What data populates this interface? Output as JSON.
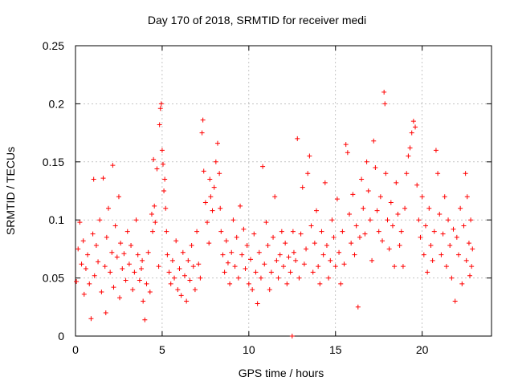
{
  "chart_data": {
    "type": "scatter",
    "title": "Day 170 of 2018, SRMTID for receiver medi",
    "xlabel": "GPS time / hours",
    "ylabel": "SRMTID / TECUs",
    "xlim": [
      0,
      24
    ],
    "ylim": [
      0,
      0.25
    ],
    "xticks": [
      0,
      5,
      10,
      15,
      20
    ],
    "xtick_labels": [
      "0",
      "5",
      "10",
      "15",
      "20"
    ],
    "yticks": [
      0,
      0.05,
      0.1,
      0.15,
      0.2,
      0.25
    ],
    "ytick_labels": [
      "0",
      "0.05",
      "0.1",
      "0.15",
      "0.2",
      "0.25"
    ],
    "grid": true,
    "marker": "plus",
    "color": "#ff0000",
    "series": [
      {
        "name": "SRMTID",
        "points": [
          [
            0.05,
            0.047
          ],
          [
            0.15,
            0.075
          ],
          [
            0.25,
            0.098
          ],
          [
            0.35,
            0.062
          ],
          [
            0.45,
            0.082
          ],
          [
            0.5,
            0.036
          ],
          [
            0.6,
            0.058
          ],
          [
            0.7,
            0.07
          ],
          [
            0.8,
            0.045
          ],
          [
            0.9,
            0.015
          ],
          [
            1.0,
            0.088
          ],
          [
            1.05,
            0.135
          ],
          [
            1.1,
            0.052
          ],
          [
            1.2,
            0.078
          ],
          [
            1.3,
            0.064
          ],
          [
            1.4,
            0.1
          ],
          [
            1.5,
            0.038
          ],
          [
            1.6,
            0.136
          ],
          [
            1.7,
            0.06
          ],
          [
            1.75,
            0.02
          ],
          [
            1.8,
            0.085
          ],
          [
            1.9,
            0.11
          ],
          [
            2.0,
            0.055
          ],
          [
            2.1,
            0.072
          ],
          [
            2.15,
            0.147
          ],
          [
            2.2,
            0.042
          ],
          [
            2.3,
            0.095
          ],
          [
            2.4,
            0.068
          ],
          [
            2.5,
            0.12
          ],
          [
            2.55,
            0.033
          ],
          [
            2.6,
            0.08
          ],
          [
            2.7,
            0.058
          ],
          [
            2.8,
            0.071
          ],
          [
            2.9,
            0.048
          ],
          [
            3.0,
            0.09
          ],
          [
            3.1,
            0.062
          ],
          [
            3.2,
            0.078
          ],
          [
            3.3,
            0.04
          ],
          [
            3.4,
            0.055
          ],
          [
            3.5,
            0.1
          ],
          [
            3.6,
            0.07
          ],
          [
            3.7,
            0.048
          ],
          [
            3.8,
            0.058
          ],
          [
            3.85,
            0.065
          ],
          [
            3.9,
            0.03
          ],
          [
            4.0,
            0.014
          ],
          [
            4.1,
            0.045
          ],
          [
            4.2,
            0.072
          ],
          [
            4.3,
            0.038
          ],
          [
            4.4,
            0.105
          ],
          [
            4.45,
            0.09
          ],
          [
            4.5,
            0.152
          ],
          [
            4.55,
            0.112
          ],
          [
            4.6,
            0.098
          ],
          [
            4.7,
            0.144
          ],
          [
            4.8,
            0.06
          ],
          [
            4.85,
            0.182
          ],
          [
            4.9,
            0.196
          ],
          [
            4.95,
            0.2
          ],
          [
            5.0,
            0.16
          ],
          [
            5.05,
            0.148
          ],
          [
            5.1,
            0.125
          ],
          [
            5.15,
            0.135
          ],
          [
            5.2,
            0.11
          ],
          [
            5.25,
            0.09
          ],
          [
            5.3,
            0.07
          ],
          [
            5.4,
            0.055
          ],
          [
            5.5,
            0.045
          ],
          [
            5.6,
            0.065
          ],
          [
            5.7,
            0.05
          ],
          [
            5.8,
            0.082
          ],
          [
            5.9,
            0.04
          ],
          [
            6.0,
            0.058
          ],
          [
            6.1,
            0.035
          ],
          [
            6.2,
            0.072
          ],
          [
            6.3,
            0.052
          ],
          [
            6.4,
            0.03
          ],
          [
            6.5,
            0.065
          ],
          [
            6.6,
            0.048
          ],
          [
            6.7,
            0.078
          ],
          [
            6.8,
            0.06
          ],
          [
            6.9,
            0.04
          ],
          [
            7.0,
            0.09
          ],
          [
            7.1,
            0.062
          ],
          [
            7.2,
            0.05
          ],
          [
            7.3,
            0.175
          ],
          [
            7.35,
            0.186
          ],
          [
            7.4,
            0.142
          ],
          [
            7.5,
            0.115
          ],
          [
            7.6,
            0.098
          ],
          [
            7.7,
            0.08
          ],
          [
            7.75,
            0.135
          ],
          [
            7.8,
            0.12
          ],
          [
            7.9,
            0.108
          ],
          [
            8.0,
            0.128
          ],
          [
            8.1,
            0.15
          ],
          [
            8.2,
            0.166
          ],
          [
            8.3,
            0.14
          ],
          [
            8.35,
            0.11
          ],
          [
            8.4,
            0.09
          ],
          [
            8.5,
            0.07
          ],
          [
            8.6,
            0.055
          ],
          [
            8.7,
            0.082
          ],
          [
            8.8,
            0.063
          ],
          [
            8.9,
            0.045
          ],
          [
            9.0,
            0.072
          ],
          [
            9.1,
            0.1
          ],
          [
            9.2,
            0.06
          ],
          [
            9.3,
            0.085
          ],
          [
            9.4,
            0.05
          ],
          [
            9.5,
            0.112
          ],
          [
            9.6,
            0.07
          ],
          [
            9.7,
            0.092
          ],
          [
            9.8,
            0.058
          ],
          [
            9.9,
            0.078
          ],
          [
            10.0,
            0.045
          ],
          [
            10.1,
            0.066
          ],
          [
            10.2,
            0.04
          ],
          [
            10.3,
            0.088
          ],
          [
            10.4,
            0.055
          ],
          [
            10.5,
            0.028
          ],
          [
            10.6,
            0.072
          ],
          [
            10.7,
            0.05
          ],
          [
            10.8,
            0.146
          ],
          [
            10.9,
            0.062
          ],
          [
            11.0,
            0.098
          ],
          [
            11.1,
            0.078
          ],
          [
            11.2,
            0.04
          ],
          [
            11.3,
            0.055
          ],
          [
            11.4,
            0.085
          ],
          [
            11.5,
            0.12
          ],
          [
            11.6,
            0.065
          ],
          [
            11.7,
            0.05
          ],
          [
            11.8,
            0.07
          ],
          [
            11.9,
            0.09
          ],
          [
            12.0,
            0.06
          ],
          [
            12.1,
            0.08
          ],
          [
            12.2,
            0.045
          ],
          [
            12.3,
            0.068
          ],
          [
            12.4,
            0.055
          ],
          [
            12.5,
            0.0
          ],
          [
            12.55,
            0.09
          ],
          [
            12.6,
            0.072
          ],
          [
            12.7,
            0.065
          ],
          [
            12.8,
            0.17
          ],
          [
            12.9,
            0.05
          ],
          [
            13.0,
            0.088
          ],
          [
            13.1,
            0.128
          ],
          [
            13.2,
            0.062
          ],
          [
            13.3,
            0.075
          ],
          [
            13.4,
            0.14
          ],
          [
            13.5,
            0.155
          ],
          [
            13.6,
            0.095
          ],
          [
            13.7,
            0.055
          ],
          [
            13.8,
            0.08
          ],
          [
            13.9,
            0.108
          ],
          [
            14.0,
            0.06
          ],
          [
            14.1,
            0.045
          ],
          [
            14.2,
            0.09
          ],
          [
            14.3,
            0.07
          ],
          [
            14.4,
            0.132
          ],
          [
            14.5,
            0.078
          ],
          [
            14.6,
            0.05
          ],
          [
            14.7,
            0.065
          ],
          [
            14.8,
            0.1
          ],
          [
            14.9,
            0.085
          ],
          [
            15.0,
            0.06
          ],
          [
            15.1,
            0.118
          ],
          [
            15.2,
            0.072
          ],
          [
            15.3,
            0.045
          ],
          [
            15.4,
            0.09
          ],
          [
            15.5,
            0.062
          ],
          [
            15.6,
            0.165
          ],
          [
            15.7,
            0.158
          ],
          [
            15.8,
            0.105
          ],
          [
            15.9,
            0.08
          ],
          [
            16.0,
            0.122
          ],
          [
            16.1,
            0.07
          ],
          [
            16.2,
            0.095
          ],
          [
            16.3,
            0.025
          ],
          [
            16.4,
            0.085
          ],
          [
            16.5,
            0.135
          ],
          [
            16.6,
            0.11
          ],
          [
            16.7,
            0.088
          ],
          [
            16.8,
            0.15
          ],
          [
            16.9,
            0.125
          ],
          [
            17.0,
            0.1
          ],
          [
            17.1,
            0.065
          ],
          [
            17.2,
            0.168
          ],
          [
            17.3,
            0.145
          ],
          [
            17.4,
            0.108
          ],
          [
            17.5,
            0.09
          ],
          [
            17.6,
            0.12
          ],
          [
            17.7,
            0.082
          ],
          [
            17.8,
            0.21
          ],
          [
            17.85,
            0.2
          ],
          [
            17.9,
            0.14
          ],
          [
            18.0,
            0.1
          ],
          [
            18.1,
            0.075
          ],
          [
            18.2,
            0.115
          ],
          [
            18.3,
            0.095
          ],
          [
            18.4,
            0.06
          ],
          [
            18.5,
            0.132
          ],
          [
            18.6,
            0.105
          ],
          [
            18.7,
            0.078
          ],
          [
            18.8,
            0.09
          ],
          [
            18.9,
            0.06
          ],
          [
            19.0,
            0.11
          ],
          [
            19.1,
            0.14
          ],
          [
            19.2,
            0.155
          ],
          [
            19.3,
            0.162
          ],
          [
            19.4,
            0.175
          ],
          [
            19.5,
            0.185
          ],
          [
            19.6,
            0.18
          ],
          [
            19.7,
            0.13
          ],
          [
            19.8,
            0.1
          ],
          [
            19.9,
            0.085
          ],
          [
            20.0,
            0.12
          ],
          [
            20.1,
            0.07
          ],
          [
            20.2,
            0.095
          ],
          [
            20.3,
            0.055
          ],
          [
            20.4,
            0.11
          ],
          [
            20.5,
            0.078
          ],
          [
            20.6,
            0.065
          ],
          [
            20.7,
            0.09
          ],
          [
            20.8,
            0.16
          ],
          [
            20.9,
            0.14
          ],
          [
            21.0,
            0.105
          ],
          [
            21.1,
            0.07
          ],
          [
            21.2,
            0.088
          ],
          [
            21.3,
            0.12
          ],
          [
            21.4,
            0.06
          ],
          [
            21.5,
            0.1
          ],
          [
            21.6,
            0.078
          ],
          [
            21.7,
            0.05
          ],
          [
            21.8,
            0.092
          ],
          [
            21.9,
            0.03
          ],
          [
            22.0,
            0.085
          ],
          [
            22.1,
            0.07
          ],
          [
            22.2,
            0.11
          ],
          [
            22.3,
            0.045
          ],
          [
            22.4,
            0.095
          ],
          [
            22.5,
            0.14
          ],
          [
            22.55,
            0.065
          ],
          [
            22.6,
            0.12
          ],
          [
            22.7,
            0.08
          ],
          [
            22.75,
            0.052
          ],
          [
            22.8,
            0.1
          ],
          [
            22.85,
            0.06
          ],
          [
            22.9,
            0.075
          ]
        ]
      }
    ]
  }
}
